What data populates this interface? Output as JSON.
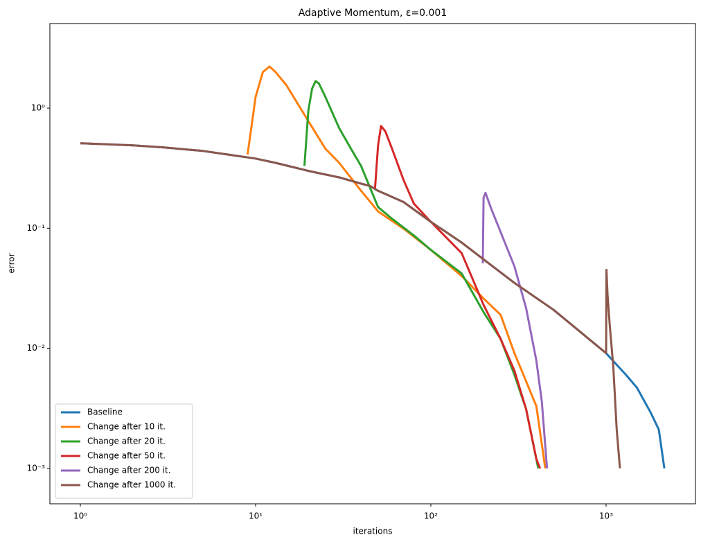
{
  "chart_data": {
    "type": "line",
    "title": "Adaptive Momentum, ε=0.001",
    "x_label": "iterations",
    "y_label": "error",
    "log_x": true,
    "log_y": true,
    "xlim": [
      0.67,
      3236
    ],
    "ylim": [
      0.000507,
      5.06
    ],
    "xticks": [
      {
        "value": 1,
        "label": "10⁰"
      },
      {
        "value": 10,
        "label": "10¹"
      },
      {
        "value": 100,
        "label": "10²"
      },
      {
        "value": 1000,
        "label": "10³"
      }
    ],
    "yticks": [
      {
        "value": 0.001,
        "label": "10⁻³"
      },
      {
        "value": 0.01,
        "label": "10⁻²"
      },
      {
        "value": 0.1,
        "label": "10⁻¹"
      },
      {
        "value": 1,
        "label": "10⁰"
      }
    ],
    "legend": "lower left",
    "series": [
      {
        "name": "Baseline",
        "color": "#1f77b4",
        "x": [
          1,
          2,
          3,
          5,
          7,
          10,
          13,
          20,
          30,
          40,
          45,
          50,
          70,
          100,
          150,
          200,
          300,
          500,
          700,
          1000,
          1300,
          1500,
          1800,
          2000,
          2150
        ],
        "values": [
          0.51,
          0.49,
          0.47,
          0.44,
          0.41,
          0.38,
          0.35,
          0.3,
          0.265,
          0.235,
          0.225,
          0.205,
          0.165,
          0.113,
          0.076,
          0.055,
          0.035,
          0.021,
          0.014,
          0.0091,
          0.006,
          0.0047,
          0.0029,
          0.0021,
          0.001
        ]
      },
      {
        "name": "Change after 10 it.",
        "color": "#ff7f0e",
        "x": [
          9,
          10,
          11,
          12,
          13,
          15,
          20,
          25,
          30,
          40,
          50,
          70,
          100,
          150,
          200,
          250,
          300,
          350,
          400,
          450
        ],
        "values": [
          0.41,
          1.24,
          2.0,
          2.22,
          2.0,
          1.55,
          0.78,
          0.46,
          0.35,
          0.205,
          0.138,
          0.099,
          0.066,
          0.04,
          0.026,
          0.019,
          0.0091,
          0.0053,
          0.0033,
          0.001
        ]
      },
      {
        "name": "Change after 20 it.",
        "color": "#2ca02c",
        "x": [
          19,
          20,
          21,
          22,
          23,
          25,
          30,
          35,
          40,
          50,
          60,
          80,
          100,
          150,
          200,
          250,
          300,
          350,
          410
        ],
        "values": [
          0.33,
          0.95,
          1.45,
          1.68,
          1.6,
          1.24,
          0.68,
          0.46,
          0.33,
          0.15,
          0.12,
          0.087,
          0.066,
          0.042,
          0.02,
          0.012,
          0.006,
          0.0031,
          0.001
        ]
      },
      {
        "name": "Change after 50 it.",
        "color": "#d62728",
        "x": [
          48,
          50,
          52,
          55,
          60,
          70,
          80,
          100,
          150,
          200,
          250,
          300,
          350,
          400,
          420
        ],
        "values": [
          0.21,
          0.49,
          0.71,
          0.64,
          0.46,
          0.25,
          0.16,
          0.113,
          0.062,
          0.023,
          0.012,
          0.0065,
          0.0031,
          0.0012,
          0.001
        ]
      },
      {
        "name": "Change after 200 it.",
        "color": "#9467bd",
        "x": [
          198,
          200,
          205,
          220,
          250,
          300,
          350,
          400,
          430,
          460
        ],
        "values": [
          0.051,
          0.18,
          0.197,
          0.148,
          0.093,
          0.048,
          0.0215,
          0.0079,
          0.0036,
          0.001
        ]
      },
      {
        "name": "Change after 1000 it.",
        "color": "#8c564b",
        "x": [
          1,
          2,
          3,
          5,
          7,
          10,
          13,
          20,
          30,
          40,
          45,
          50,
          70,
          100,
          150,
          200,
          300,
          500,
          700,
          1000,
          1005,
          1020,
          1050,
          1100,
          1150,
          1200
        ],
        "values": [
          0.51,
          0.49,
          0.47,
          0.44,
          0.41,
          0.38,
          0.35,
          0.3,
          0.265,
          0.235,
          0.225,
          0.205,
          0.165,
          0.113,
          0.076,
          0.055,
          0.035,
          0.021,
          0.014,
          0.0091,
          0.045,
          0.028,
          0.0155,
          0.007,
          0.0021,
          0.001
        ]
      }
    ]
  }
}
